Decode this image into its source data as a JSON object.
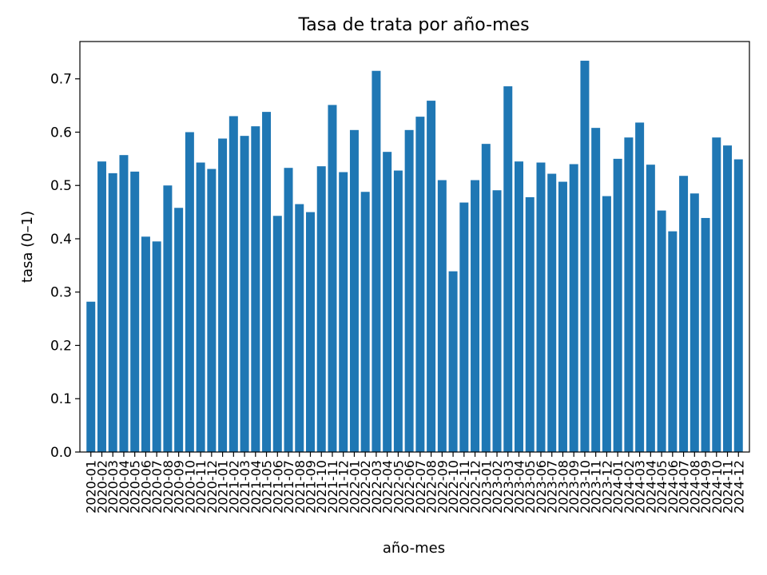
{
  "chart_data": {
    "type": "bar",
    "title": "Tasa de trata por año-mes",
    "xlabel": "año-mes",
    "ylabel": "tasa (0–1)",
    "ylim": [
      0,
      0.77
    ],
    "yticks": [
      "0.0",
      "0.1",
      "0.2",
      "0.3",
      "0.4",
      "0.5",
      "0.6",
      "0.7"
    ],
    "grid": false,
    "color": "#1f77b4",
    "categories": [
      "2020-01",
      "2020-02",
      "2020-03",
      "2020-04",
      "2020-05",
      "2020-06",
      "2020-07",
      "2020-08",
      "2020-09",
      "2020-10",
      "2020-11",
      "2020-12",
      "2021-01",
      "2021-02",
      "2021-03",
      "2021-04",
      "2021-05",
      "2021-06",
      "2021-07",
      "2021-08",
      "2021-09",
      "2021-10",
      "2021-11",
      "2021-12",
      "2022-01",
      "2022-02",
      "2022-03",
      "2022-04",
      "2022-05",
      "2022-06",
      "2022-07",
      "2022-08",
      "2022-09",
      "2022-10",
      "2022-11",
      "2022-12",
      "2023-01",
      "2023-02",
      "2023-03",
      "2023-04",
      "2023-05",
      "2023-06",
      "2023-07",
      "2023-08",
      "2023-09",
      "2023-10",
      "2023-11",
      "2023-12",
      "2024-01",
      "2024-02",
      "2024-03",
      "2024-04",
      "2024-05",
      "2024-06",
      "2024-07",
      "2024-08",
      "2024-09",
      "2024-10",
      "2024-11",
      "2024-12"
    ],
    "values": [
      0.282,
      0.545,
      0.523,
      0.557,
      0.526,
      0.404,
      0.395,
      0.5,
      0.458,
      0.6,
      0.543,
      0.531,
      0.588,
      0.63,
      0.593,
      0.611,
      0.638,
      0.443,
      0.533,
      0.465,
      0.45,
      0.536,
      0.651,
      0.525,
      0.604,
      0.488,
      0.715,
      0.563,
      0.528,
      0.604,
      0.629,
      0.659,
      0.51,
      0.339,
      0.468,
      0.51,
      0.578,
      0.491,
      0.686,
      0.545,
      0.478,
      0.543,
      0.522,
      0.507,
      0.54,
      0.734,
      0.608,
      0.48,
      0.55,
      0.59,
      0.618,
      0.539,
      0.453,
      0.414,
      0.518,
      0.485,
      0.439,
      0.59,
      0.575,
      0.549
    ]
  }
}
